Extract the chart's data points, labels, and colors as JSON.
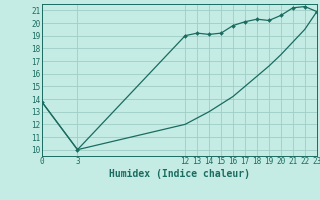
{
  "xlabel": "Humidex (Indice chaleur)",
  "bg_color": "#c5ece4",
  "grid_color": "#9ecec5",
  "line_color": "#1a6b60",
  "upper_x": [
    0,
    3,
    12,
    13,
    14,
    15,
    16,
    17,
    18,
    19,
    20,
    21,
    22,
    23
  ],
  "upper_y": [
    13.8,
    10.0,
    19.0,
    19.2,
    19.1,
    19.2,
    19.8,
    20.1,
    20.3,
    20.2,
    20.6,
    21.2,
    21.3,
    20.9
  ],
  "lower_x": [
    0,
    3,
    12,
    13,
    14,
    15,
    16,
    17,
    18,
    19,
    20,
    21,
    22,
    23
  ],
  "lower_y": [
    13.8,
    10.0,
    12.0,
    12.5,
    13.0,
    13.6,
    14.2,
    15.0,
    15.8,
    16.6,
    17.5,
    18.5,
    19.5,
    20.9
  ],
  "xlim": [
    0,
    23
  ],
  "ylim": [
    9.5,
    21.5
  ],
  "yticks": [
    10,
    11,
    12,
    13,
    14,
    15,
    16,
    17,
    18,
    19,
    20,
    21
  ],
  "xticks": [
    0,
    3,
    12,
    13,
    14,
    15,
    16,
    17,
    18,
    19,
    20,
    21,
    22,
    23
  ],
  "marker": "D",
  "markersize": 2.0,
  "linewidth": 0.9,
  "xlabel_fontsize": 7,
  "tick_labelsize": 5.5
}
